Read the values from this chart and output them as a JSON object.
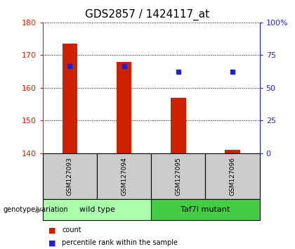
{
  "title": "GDS2857 / 1424117_at",
  "samples": [
    "GSM127093",
    "GSM127094",
    "GSM127095",
    "GSM127096"
  ],
  "count_values": [
    173.5,
    168.0,
    157.0,
    141.0
  ],
  "percentile_values": [
    66.5,
    66.5,
    62.5,
    62.5
  ],
  "ylim_left": [
    140,
    180
  ],
  "ylim_right": [
    0,
    100
  ],
  "yticks_left": [
    140,
    150,
    160,
    170,
    180
  ],
  "yticks_right": [
    0,
    25,
    50,
    75,
    100
  ],
  "ytick_labels_right": [
    "0",
    "25",
    "50",
    "75",
    "100%"
  ],
  "bar_color": "#cc2200",
  "square_color": "#2222cc",
  "bar_bottom": 140,
  "groups": [
    {
      "label": "wild type",
      "indices": [
        0,
        1
      ],
      "color": "#aaffaa"
    },
    {
      "label": "Taf7l mutant",
      "indices": [
        2,
        3
      ],
      "color": "#44cc44"
    }
  ],
  "group_label_prefix": "genotype/variation",
  "legend_items": [
    {
      "label": "count",
      "color": "#cc2200"
    },
    {
      "label": "percentile rank within the sample",
      "color": "#2222cc"
    }
  ],
  "grid_color": "black",
  "sample_box_color": "#cccccc",
  "title_fontsize": 11,
  "tick_fontsize": 8,
  "label_fontsize": 7,
  "group_fontsize": 8
}
